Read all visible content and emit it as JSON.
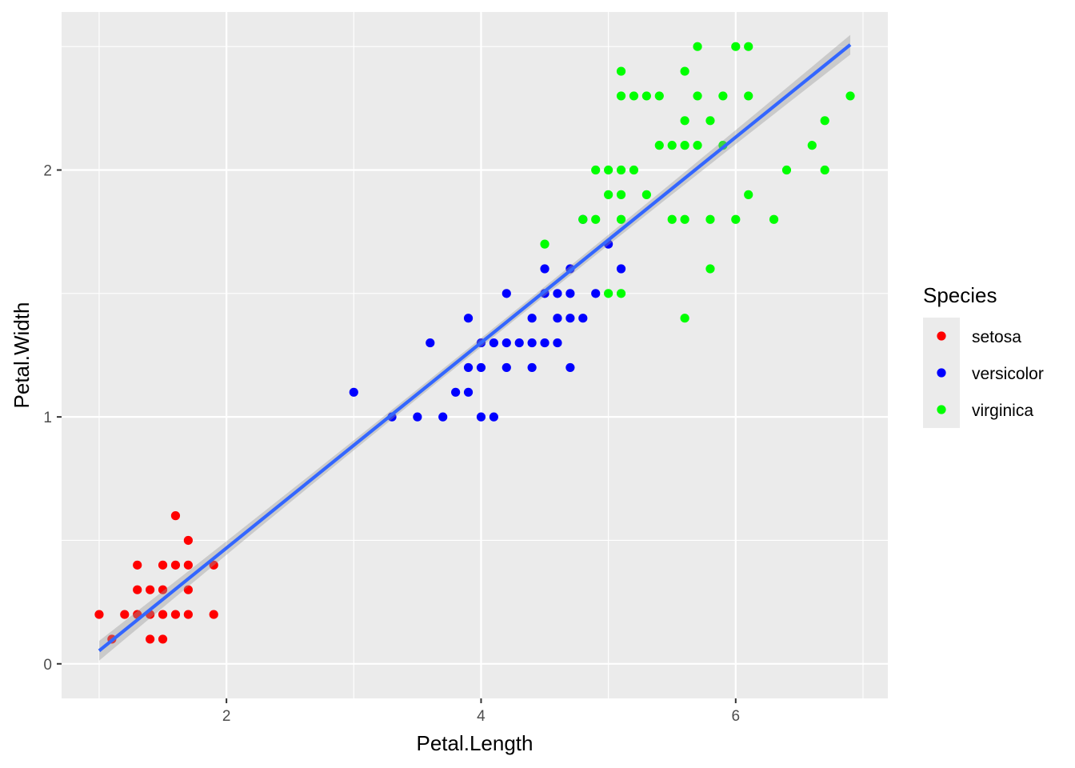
{
  "chart_data": {
    "type": "scatter",
    "title": "",
    "xlabel": "Petal.Length",
    "ylabel": "Petal.Width",
    "xlim": [
      0.705,
      7.195
    ],
    "ylim": [
      -0.14,
      2.64
    ],
    "x_ticks": [
      2,
      4,
      6
    ],
    "y_ticks": [
      0,
      1,
      2
    ],
    "x_tick_labels": [
      "2",
      "4",
      "6"
    ],
    "y_tick_labels": [
      "0",
      "1",
      "2"
    ],
    "grid": true,
    "panel_background": "#EBEBEB",
    "legend": {
      "title": "Species",
      "position": "right",
      "entries": [
        "setosa",
        "versicolor",
        "virginica"
      ]
    },
    "series": [
      {
        "name": "setosa",
        "color": "#FF0000",
        "points": [
          [
            1.0,
            0.2
          ],
          [
            1.1,
            0.1
          ],
          [
            1.2,
            0.2
          ],
          [
            1.3,
            0.2
          ],
          [
            1.3,
            0.3
          ],
          [
            1.3,
            0.4
          ],
          [
            1.4,
            0.1
          ],
          [
            1.4,
            0.2
          ],
          [
            1.4,
            0.3
          ],
          [
            1.5,
            0.1
          ],
          [
            1.5,
            0.2
          ],
          [
            1.5,
            0.3
          ],
          [
            1.5,
            0.4
          ],
          [
            1.6,
            0.2
          ],
          [
            1.6,
            0.4
          ],
          [
            1.6,
            0.6
          ],
          [
            1.7,
            0.2
          ],
          [
            1.7,
            0.3
          ],
          [
            1.7,
            0.4
          ],
          [
            1.7,
            0.5
          ],
          [
            1.9,
            0.2
          ],
          [
            1.9,
            0.4
          ]
        ]
      },
      {
        "name": "versicolor",
        "color": "#0000FF",
        "points": [
          [
            3.0,
            1.1
          ],
          [
            3.3,
            1.0
          ],
          [
            3.5,
            1.0
          ],
          [
            3.6,
            1.3
          ],
          [
            3.7,
            1.0
          ],
          [
            3.8,
            1.1
          ],
          [
            3.9,
            1.1
          ],
          [
            3.9,
            1.2
          ],
          [
            3.9,
            1.4
          ],
          [
            4.0,
            1.0
          ],
          [
            4.0,
            1.2
          ],
          [
            4.0,
            1.3
          ],
          [
            4.1,
            1.0
          ],
          [
            4.1,
            1.3
          ],
          [
            4.2,
            1.2
          ],
          [
            4.2,
            1.3
          ],
          [
            4.2,
            1.5
          ],
          [
            4.3,
            1.3
          ],
          [
            4.4,
            1.2
          ],
          [
            4.4,
            1.3
          ],
          [
            4.4,
            1.4
          ],
          [
            4.5,
            1.3
          ],
          [
            4.5,
            1.5
          ],
          [
            4.5,
            1.6
          ],
          [
            4.6,
            1.3
          ],
          [
            4.6,
            1.4
          ],
          [
            4.6,
            1.5
          ],
          [
            4.7,
            1.2
          ],
          [
            4.7,
            1.4
          ],
          [
            4.7,
            1.5
          ],
          [
            4.7,
            1.6
          ],
          [
            4.8,
            1.4
          ],
          [
            4.8,
            1.8
          ],
          [
            4.9,
            1.5
          ],
          [
            5.0,
            1.7
          ],
          [
            5.1,
            1.6
          ]
        ]
      },
      {
        "name": "virginica",
        "color": "#00FF00",
        "points": [
          [
            4.5,
            1.7
          ],
          [
            4.8,
            1.8
          ],
          [
            4.9,
            1.8
          ],
          [
            4.9,
            2.0
          ],
          [
            5.0,
            1.5
          ],
          [
            5.0,
            1.9
          ],
          [
            5.0,
            2.0
          ],
          [
            5.1,
            1.5
          ],
          [
            5.1,
            1.8
          ],
          [
            5.1,
            1.9
          ],
          [
            5.1,
            2.0
          ],
          [
            5.1,
            2.3
          ],
          [
            5.1,
            2.4
          ],
          [
            5.2,
            2.0
          ],
          [
            5.2,
            2.3
          ],
          [
            5.3,
            1.9
          ],
          [
            5.3,
            2.3
          ],
          [
            5.4,
            2.1
          ],
          [
            5.4,
            2.3
          ],
          [
            5.5,
            1.8
          ],
          [
            5.5,
            2.1
          ],
          [
            5.6,
            1.4
          ],
          [
            5.6,
            1.8
          ],
          [
            5.6,
            2.1
          ],
          [
            5.6,
            2.2
          ],
          [
            5.6,
            2.4
          ],
          [
            5.7,
            2.1
          ],
          [
            5.7,
            2.3
          ],
          [
            5.7,
            2.5
          ],
          [
            5.8,
            1.6
          ],
          [
            5.8,
            1.8
          ],
          [
            5.8,
            2.2
          ],
          [
            5.9,
            2.1
          ],
          [
            5.9,
            2.3
          ],
          [
            6.0,
            1.8
          ],
          [
            6.0,
            2.5
          ],
          [
            6.1,
            1.9
          ],
          [
            6.1,
            2.3
          ],
          [
            6.1,
            2.5
          ],
          [
            6.3,
            1.8
          ],
          [
            6.4,
            2.0
          ],
          [
            6.6,
            2.1
          ],
          [
            6.7,
            2.0
          ],
          [
            6.7,
            2.2
          ],
          [
            6.9,
            2.3
          ]
        ]
      }
    ],
    "smooth": {
      "method": "lm",
      "color": "#3366FF",
      "band_color": "#999999",
      "intercept": -0.363,
      "slope": 0.416,
      "x_range": [
        1.0,
        6.9
      ],
      "se_at_ends": 0.04,
      "se_at_center": 0.018
    }
  }
}
